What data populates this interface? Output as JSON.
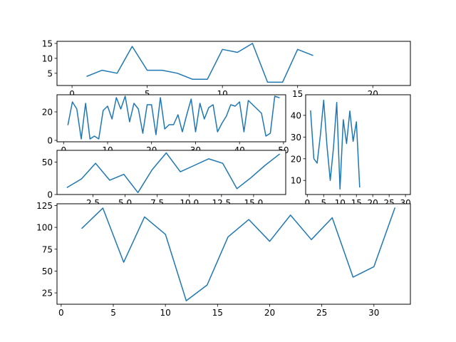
{
  "chart_data": [
    {
      "type": "line",
      "grid": false,
      "xlim": [
        -1.0,
        22.5
      ],
      "ylim": [
        0.9,
        15.7
      ],
      "xticks": [
        0,
        5,
        10,
        15,
        20
      ],
      "yticks": [
        5,
        10,
        15
      ],
      "series": [
        {
          "color": "#1f77b4",
          "x": [
            1,
            2,
            3,
            4,
            5,
            6,
            7,
            8,
            9,
            10,
            11,
            12,
            13,
            14,
            15,
            16
          ],
          "y": [
            4,
            6,
            5,
            14,
            6,
            6,
            5,
            3,
            3,
            13,
            12,
            15,
            2,
            2,
            13,
            11
          ]
        }
      ]
    },
    {
      "type": "line",
      "grid": false,
      "xlim": [
        -1.5,
        50.5
      ],
      "ylim": [
        -1,
        32
      ],
      "xticks": [
        0,
        10,
        20,
        30,
        40,
        50
      ],
      "yticks": [
        0,
        20
      ],
      "series": [
        {
          "color": "#1f77b4",
          "x": [
            1,
            2,
            3,
            4,
            5,
            6,
            7,
            8,
            9,
            10,
            11,
            12,
            13,
            14,
            15,
            16,
            17,
            18,
            19,
            20,
            21,
            22,
            23,
            24,
            25,
            26,
            27,
            28,
            29,
            30,
            31,
            32,
            33,
            34,
            35,
            36,
            37,
            38,
            39,
            40,
            41,
            42,
            43,
            44,
            45,
            46,
            47,
            48,
            49
          ],
          "y": [
            11,
            27,
            22,
            1,
            26,
            1,
            3,
            1,
            21,
            24,
            15,
            30,
            22,
            31,
            13,
            26,
            22,
            5,
            25,
            25,
            4,
            30,
            8,
            11,
            11,
            18,
            6,
            18,
            29,
            6,
            26,
            15,
            23,
            25,
            6,
            12,
            17,
            25,
            24,
            27,
            6,
            28,
            25,
            22,
            19,
            3,
            5,
            31,
            30
          ]
        }
      ]
    },
    {
      "type": "line",
      "grid": false,
      "xlim": [
        -0.5,
        31.5
      ],
      "ylim": [
        3.5,
        49.5
      ],
      "xticks": [
        0,
        5,
        10,
        15,
        20,
        25,
        30
      ],
      "yticks": [
        10,
        20,
        30,
        40
      ],
      "series": [
        {
          "color": "#1f77b4",
          "x": [
            1,
            2,
            3,
            4,
            5,
            6,
            7,
            8,
            9,
            10,
            11,
            12,
            13,
            14,
            15,
            16
          ],
          "y": [
            42,
            20,
            18,
            31,
            47,
            26,
            10,
            25,
            46,
            6,
            38,
            27,
            42,
            28,
            37,
            7
          ]
        }
      ]
    },
    {
      "type": "line",
      "grid": false,
      "xlim": [
        -0.3,
        17.5
      ],
      "ylim": [
        0,
        68
      ],
      "xticks": [
        2.5,
        5.0,
        7.5,
        10.0,
        12.5,
        15.0
      ],
      "xtick_labels": [
        "2.5",
        "5.0",
        "7.5",
        "10.0",
        "12.5",
        "15.0"
      ],
      "yticks": [
        0,
        50
      ],
      "series": [
        {
          "color": "#1f77b4",
          "x": [
            0.5,
            1.6,
            2.7,
            3.8,
            4.9,
            6.0,
            7.1,
            8.2,
            9.3,
            10.4,
            11.5,
            12.6,
            13.7,
            14.8,
            15.9,
            17.0
          ],
          "y": [
            11,
            24,
            48,
            22,
            31,
            3,
            38,
            64,
            35,
            45,
            55,
            48,
            9,
            26,
            45,
            62
          ]
        }
      ]
    },
    {
      "type": "line",
      "grid": false,
      "xlim": [
        -0.4,
        33.5
      ],
      "ylim": [
        12,
        127
      ],
      "xticks": [
        0,
        5,
        10,
        15,
        20,
        25,
        30
      ],
      "yticks": [
        25,
        50,
        75,
        100,
        125
      ],
      "series": [
        {
          "color": "#1f77b4",
          "x": [
            2,
            4,
            6,
            8,
            10,
            12,
            14,
            16,
            18,
            20,
            22,
            24,
            26,
            28,
            30,
            32
          ],
          "y": [
            99,
            122,
            60,
            112,
            92,
            16,
            34,
            89,
            109,
            84,
            114,
            86,
            111,
            43,
            55,
            122
          ]
        }
      ]
    }
  ]
}
